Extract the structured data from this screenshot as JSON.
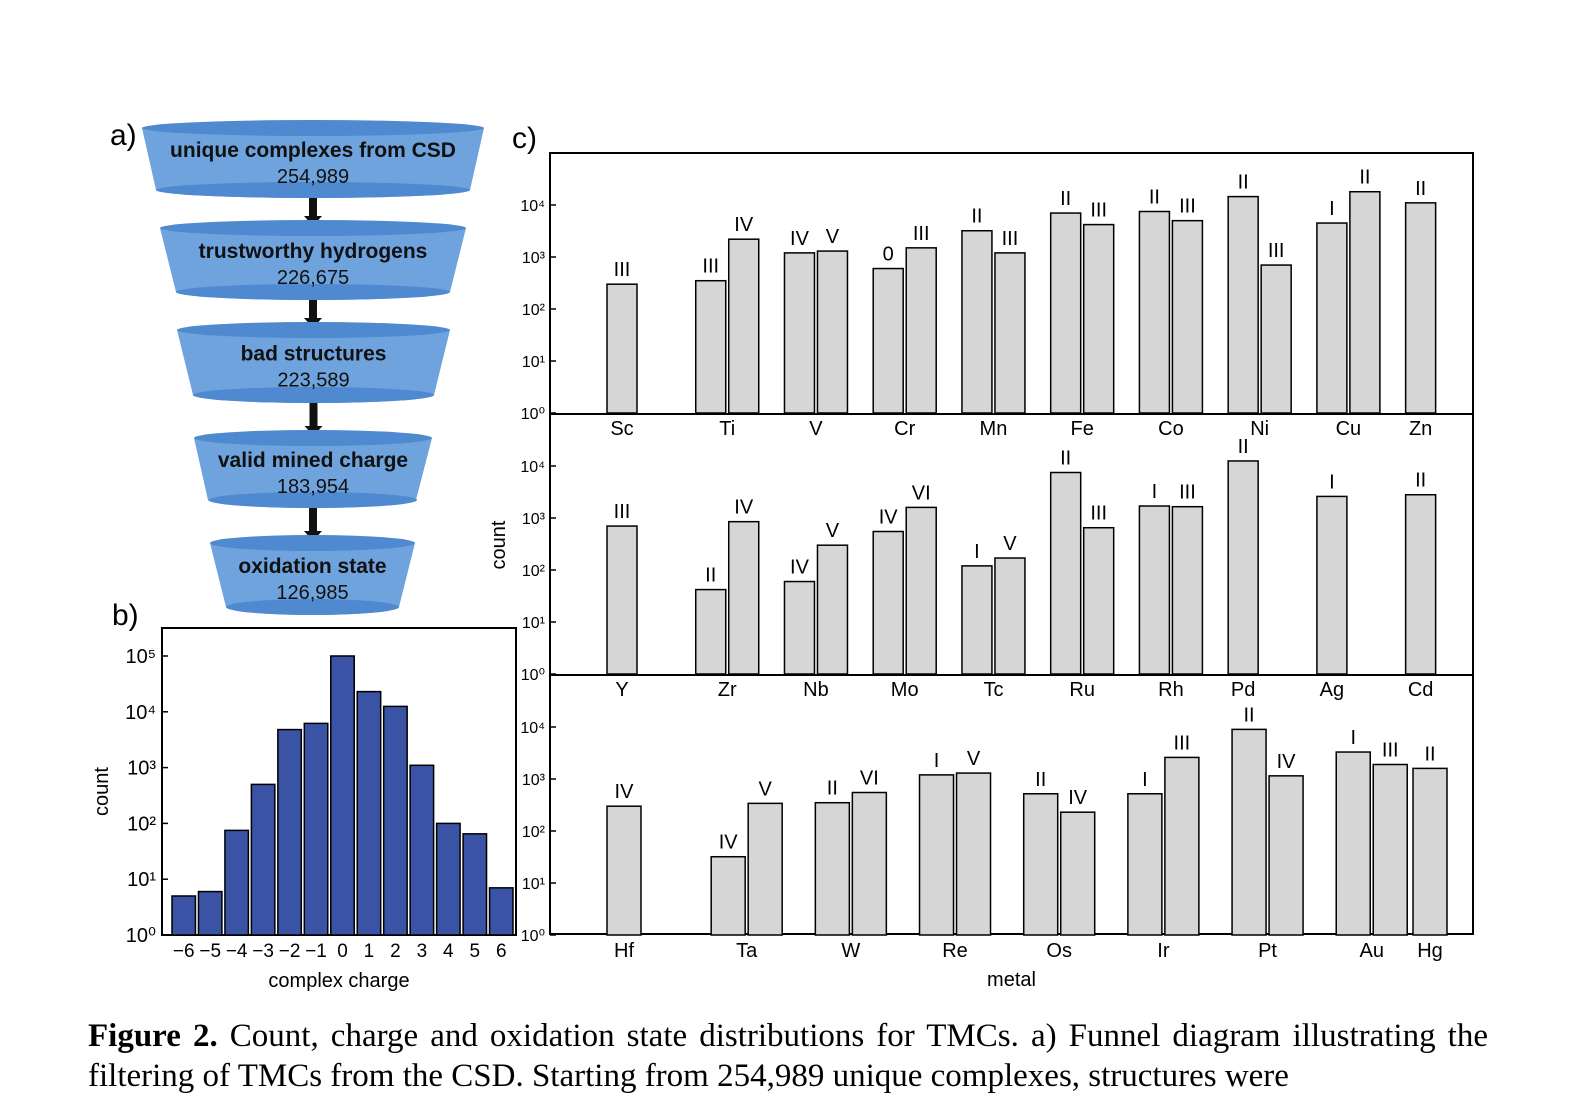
{
  "panel_labels": {
    "a": "a)",
    "b": "b)",
    "c": "c)"
  },
  "funnel": {
    "colors": {
      "body": "#6fa3dd",
      "rim": "#4f8ad0",
      "arrow": "#111111"
    },
    "stages": [
      {
        "label": "unique complexes from CSD",
        "count": "254,989"
      },
      {
        "label": "trustworthy hydrogens",
        "count": "226,675"
      },
      {
        "label": "bad structures",
        "count": "223,589"
      },
      {
        "label": "valid mined charge",
        "count": "183,954"
      },
      {
        "label": "oxidation state",
        "count": "126,985"
      }
    ]
  },
  "chart_data": [
    {
      "type": "bar",
      "panel": "b",
      "xlabel": "complex charge",
      "ylabel": "count",
      "log_scale": true,
      "ylim": [
        1,
        100000
      ],
      "yticks": [
        "10⁰",
        "10¹",
        "10²",
        "10³",
        "10⁴",
        "10⁵"
      ],
      "bar_color": "#3a53a4",
      "categories": [
        "−6",
        "−5",
        "−4",
        "−3",
        "−2",
        "−1",
        "0",
        "1",
        "2",
        "3",
        "4",
        "5",
        "6"
      ],
      "values": [
        5,
        6,
        75,
        500,
        4800,
        6200,
        100000,
        23000,
        12500,
        1100,
        100,
        65,
        7
      ]
    },
    {
      "type": "bar",
      "panel": "c",
      "xlabel": "metal",
      "ylabel": "count",
      "log_scale": true,
      "ylim": [
        1,
        100000
      ],
      "yticks": [
        "10⁰",
        "10¹",
        "10²",
        "10³",
        "10⁴"
      ],
      "bar_color": "#d6d6d6",
      "rows": [
        {
          "metals": [
            {
              "name": "Sc",
              "bars": [
                {
                  "label": "III",
                  "value": 300
                }
              ]
            },
            {
              "name": "Ti",
              "bars": [
                {
                  "label": "III",
                  "value": 350
                },
                {
                  "label": "IV",
                  "value": 2200
                }
              ]
            },
            {
              "name": "V",
              "bars": [
                {
                  "label": "IV",
                  "value": 1200
                },
                {
                  "label": "V",
                  "value": 1300
                }
              ]
            },
            {
              "name": "Cr",
              "bars": [
                {
                  "label": "0",
                  "value": 600
                },
                {
                  "label": "III",
                  "value": 1500
                }
              ]
            },
            {
              "name": "Mn",
              "bars": [
                {
                  "label": "II",
                  "value": 3200
                },
                {
                  "label": "III",
                  "value": 1200
                }
              ]
            },
            {
              "name": "Fe",
              "bars": [
                {
                  "label": "II",
                  "value": 7000
                },
                {
                  "label": "III",
                  "value": 4200
                }
              ]
            },
            {
              "name": "Co",
              "bars": [
                {
                  "label": "II",
                  "value": 7500
                },
                {
                  "label": "III",
                  "value": 5000
                }
              ]
            },
            {
              "name": "Ni",
              "bars": [
                {
                  "label": "II",
                  "value": 14500
                },
                {
                  "label": "III",
                  "value": 700
                }
              ]
            },
            {
              "name": "Cu",
              "bars": [
                {
                  "label": "I",
                  "value": 4500
                },
                {
                  "label": "II",
                  "value": 18000
                }
              ]
            },
            {
              "name": "Zn",
              "bars": [
                {
                  "label": "II",
                  "value": 11000
                }
              ]
            }
          ]
        },
        {
          "metals": [
            {
              "name": "Y",
              "bars": [
                {
                  "label": "III",
                  "value": 700
                }
              ]
            },
            {
              "name": "Zr",
              "bars": [
                {
                  "label": "II",
                  "value": 42
                },
                {
                  "label": "IV",
                  "value": 850
                }
              ]
            },
            {
              "name": "Nb",
              "bars": [
                {
                  "label": "IV",
                  "value": 60
                },
                {
                  "label": "V",
                  "value": 300
                }
              ]
            },
            {
              "name": "Mo",
              "bars": [
                {
                  "label": "IV",
                  "value": 550
                },
                {
                  "label": "VI",
                  "value": 1600
                }
              ]
            },
            {
              "name": "Tc",
              "bars": [
                {
                  "label": "I",
                  "value": 120
                },
                {
                  "label": "V",
                  "value": 170
                }
              ]
            },
            {
              "name": "Ru",
              "bars": [
                {
                  "label": "II",
                  "value": 7500
                },
                {
                  "label": "III",
                  "value": 650
                }
              ]
            },
            {
              "name": "Rh",
              "bars": [
                {
                  "label": "I",
                  "value": 1700
                },
                {
                  "label": "III",
                  "value": 1650
                }
              ]
            },
            {
              "name": "Pd",
              "bars": [
                {
                  "label": "II",
                  "value": 12500
                }
              ]
            },
            {
              "name": "Ag",
              "bars": [
                {
                  "label": "I",
                  "value": 2600
                }
              ]
            },
            {
              "name": "Cd",
              "bars": [
                {
                  "label": "II",
                  "value": 2800
                }
              ]
            }
          ]
        },
        {
          "metals": [
            {
              "name": "Hf",
              "bars": [
                {
                  "label": "IV",
                  "value": 300
                }
              ]
            },
            {
              "name": "Ta",
              "bars": [
                {
                  "label": "IV",
                  "value": 32
                },
                {
                  "label": "V",
                  "value": 340
                }
              ]
            },
            {
              "name": "W",
              "bars": [
                {
                  "label": "II",
                  "value": 350
                },
                {
                  "label": "VI",
                  "value": 550
                }
              ]
            },
            {
              "name": "Re",
              "bars": [
                {
                  "label": "I",
                  "value": 1200
                },
                {
                  "label": "V",
                  "value": 1300
                }
              ]
            },
            {
              "name": "Os",
              "bars": [
                {
                  "label": "II",
                  "value": 520
                },
                {
                  "label": "IV",
                  "value": 230
                }
              ]
            },
            {
              "name": "Ir",
              "bars": [
                {
                  "label": "I",
                  "value": 520
                },
                {
                  "label": "III",
                  "value": 2600
                }
              ]
            },
            {
              "name": "Pt",
              "bars": [
                {
                  "label": "II",
                  "value": 9000
                },
                {
                  "label": "IV",
                  "value": 1150
                }
              ]
            },
            {
              "name": "Au",
              "bars": [
                {
                  "label": "I",
                  "value": 3300
                },
                {
                  "label": "III",
                  "value": 1900
                }
              ]
            },
            {
              "name": "Hg",
              "bars": [
                {
                  "label": "II",
                  "value": 1600
                }
              ]
            }
          ]
        }
      ]
    }
  ],
  "caption": {
    "figure_label": "Figure 2.",
    "text": " Count, charge and oxidation state distributions for TMCs. a) Funnel diagram illustrating the filtering of TMCs from the CSD. Starting from 254,989 unique complexes, structures were"
  }
}
